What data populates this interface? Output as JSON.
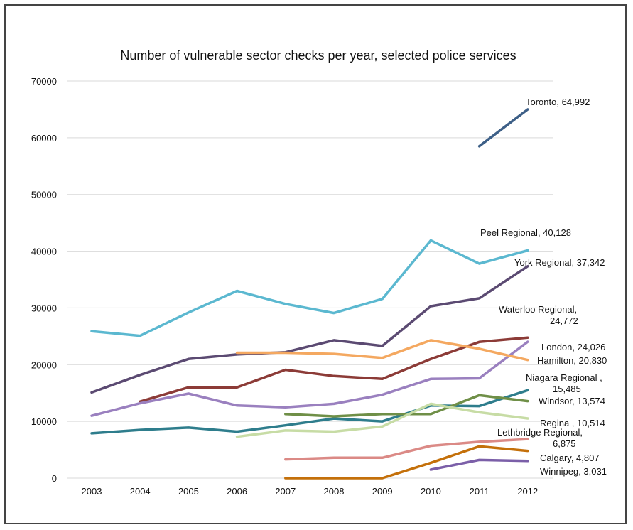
{
  "chart_data": {
    "type": "line",
    "title": "Number of vulnerable sector checks per year, selected police services",
    "xlabel": "",
    "ylabel": "",
    "ylim": [
      0,
      70000
    ],
    "yticks": [
      "0",
      "10000",
      "20000",
      "30000",
      "40000",
      "50000",
      "60000",
      "70000"
    ],
    "grid": true,
    "legend": "none",
    "x": [
      "2003",
      "2004",
      "2005",
      "2006",
      "2007",
      "2008",
      "2009",
      "2010",
      "2011",
      "2012"
    ],
    "series": [
      {
        "name": "Peel Regional",
        "color": "#5bb8d0",
        "values": [
          25900,
          25100,
          29200,
          33000,
          30700,
          29100,
          31600,
          41900,
          37800,
          40128
        ],
        "label_lines": [
          "Peel Regional, 40,128"
        ]
      },
      {
        "name": "York Regional",
        "color": "#5b4a72",
        "values": [
          15100,
          18200,
          21000,
          21800,
          22200,
          24300,
          23300,
          30300,
          31700,
          37342
        ],
        "label_lines": [
          "York Regional, 37,342"
        ]
      },
      {
        "name": "Waterloo Regional",
        "color": "#8c3b37",
        "values": [
          null,
          13500,
          16000,
          16000,
          19100,
          18000,
          17500,
          21000,
          24000,
          24772
        ],
        "label_lines": [
          "Waterloo Regional,",
          "24,772"
        ]
      },
      {
        "name": "London",
        "color": "#9a80bf",
        "values": [
          11000,
          13200,
          14900,
          12800,
          12500,
          13100,
          14700,
          17500,
          17600,
          24026
        ],
        "label_lines": [
          "London, 24,026"
        ]
      },
      {
        "name": "Hamilton",
        "color": "#f4a860",
        "values": [
          null,
          null,
          null,
          22100,
          22100,
          21900,
          21200,
          24300,
          22800,
          20830
        ],
        "label_lines": [
          "Hamilton, 20,830"
        ]
      },
      {
        "name": "Niagara Regional",
        "color": "#2e7d8c",
        "values": [
          7900,
          8500,
          8900,
          8200,
          9300,
          10500,
          10000,
          12800,
          12700,
          15485
        ],
        "label_lines": [
          "Niagara Regional ,",
          "15,485"
        ]
      },
      {
        "name": "Windsor",
        "color": "#6f8f47",
        "values": [
          null,
          null,
          null,
          null,
          11300,
          10900,
          11300,
          11300,
          14600,
          13574
        ],
        "label_lines": [
          "Windsor, 13,574"
        ]
      },
      {
        "name": "Regina",
        "color": "#c7dca5",
        "values": [
          null,
          null,
          null,
          7300,
          8400,
          8200,
          9100,
          13100,
          11600,
          10514
        ],
        "label_lines": [
          "Regina , 10,514"
        ]
      },
      {
        "name": "Lethbridge Regional",
        "color": "#db8a86",
        "values": [
          null,
          null,
          null,
          null,
          3300,
          3600,
          3600,
          5700,
          6400,
          6875
        ],
        "label_lines": [
          "Lethbridge Regional,",
          "6,875"
        ]
      },
      {
        "name": "Calgary",
        "color": "#c4700a",
        "values": [
          null,
          null,
          null,
          null,
          0,
          0,
          0,
          2700,
          5600,
          4807
        ],
        "label_lines": [
          "Calgary, 4,807"
        ]
      },
      {
        "name": "Winnipeg",
        "color": "#7b5fa8",
        "values": [
          null,
          null,
          null,
          null,
          null,
          null,
          null,
          1500,
          3200,
          3031
        ],
        "label_lines": [
          "Winnipeg, 3,031"
        ]
      },
      {
        "name": "Toronto",
        "color": "#3d5f87",
        "values": [
          null,
          null,
          null,
          null,
          null,
          null,
          null,
          null,
          58500,
          64992
        ],
        "label_lines": [
          "Toronto, 64,992"
        ]
      }
    ]
  }
}
